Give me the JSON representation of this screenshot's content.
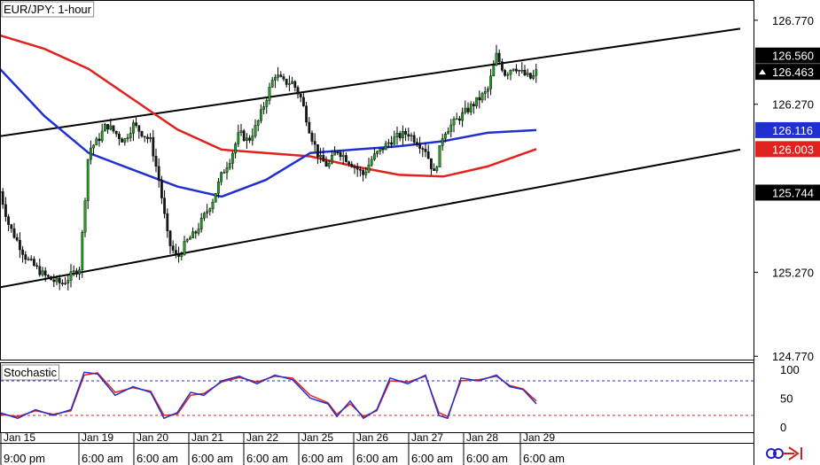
{
  "title": "EUR/JPY: 1-hour",
  "indicator_title": "Stochastic",
  "colors": {
    "background": "#ffffff",
    "candle_up": "#1e9e1e",
    "candle_down": "#1a1a1a",
    "ma_fast": "#1f2fd0",
    "ma_slow": "#e0221f",
    "trendline": "#000000",
    "stoch_k": "#1f2fd0",
    "stoch_d": "#e0221f",
    "level_upper": "#1f2fd0",
    "level_lower": "#e0221f"
  },
  "price_axis": {
    "ticks": [
      "126.770",
      "126.270",
      "125.270",
      "124.770"
    ],
    "tick_values": [
      126.77,
      126.27,
      125.27,
      124.77
    ],
    "markers": [
      {
        "label": "126.560",
        "value": 126.56,
        "bg": "#000000",
        "fg": "#ffffff"
      },
      {
        "label": "126.463",
        "value": 126.463,
        "bg": "#000000",
        "fg": "#ffffff"
      },
      {
        "label": "126.116",
        "value": 126.116,
        "bg": "#1f2fd0",
        "fg": "#ffffff"
      },
      {
        "label": "126.003",
        "value": 126.003,
        "bg": "#e0221f",
        "fg": "#ffffff"
      },
      {
        "label": "125.744",
        "value": 125.744,
        "bg": "#000000",
        "fg": "#ffffff"
      }
    ]
  },
  "stoch_axis": {
    "ticks": [
      "100",
      "50",
      "0"
    ],
    "levels": [
      80,
      20
    ]
  },
  "time_axis": {
    "dates": [
      "Jan 15",
      "Jan 19",
      "Jan 20",
      "Jan 21",
      "Jan 22",
      "Jan 25",
      "Jan 26",
      "Jan 27",
      "Jan 28",
      "Jan 29"
    ],
    "times": [
      "9:00 pm",
      "6:00 am",
      "6:00 am",
      "6:00 am",
      "6:00 am",
      "6:00 am",
      "6:00 am",
      "6:00 am",
      "6:00 am",
      "6:00 am"
    ]
  },
  "chart_data": {
    "type": "candlestick",
    "title": "EUR/JPY: 1-hour",
    "ylim": [
      124.75,
      126.88
    ],
    "price_series": {
      "name": "EUR/JPY",
      "x_index": [
        0,
        10,
        20,
        30,
        40,
        50,
        60,
        70,
        80,
        90,
        100,
        110,
        120,
        130,
        140,
        150,
        160,
        170,
        180,
        190,
        200,
        210,
        220,
        230,
        240,
        250,
        260,
        270,
        280,
        290,
        300,
        310,
        320,
        330,
        340,
        350,
        360,
        370,
        380,
        390,
        400,
        410,
        420,
        430,
        440,
        450,
        460,
        470,
        480,
        490,
        500,
        510,
        520,
        530,
        540,
        550,
        560,
        570,
        580,
        590,
        600,
        605
      ],
      "close": [
        125.75,
        125.55,
        125.45,
        125.35,
        125.3,
        125.25,
        125.22,
        125.2,
        125.25,
        125.3,
        126.0,
        126.05,
        126.15,
        126.1,
        126.05,
        126.15,
        126.1,
        126.05,
        125.8,
        125.45,
        125.35,
        125.45,
        125.5,
        125.6,
        125.7,
        125.85,
        125.95,
        126.1,
        126.05,
        126.15,
        126.3,
        126.45,
        126.4,
        126.4,
        126.3,
        126.1,
        125.95,
        125.9,
        126.0,
        125.95,
        125.9,
        125.85,
        125.95,
        126.0,
        126.05,
        126.08,
        126.1,
        126.05,
        126.0,
        125.85,
        126.1,
        126.15,
        126.2,
        126.25,
        126.3,
        126.35,
        126.56,
        126.45,
        126.5,
        126.45,
        126.42,
        126.463
      ]
    },
    "ma_fast": {
      "x_index": [
        0,
        50,
        100,
        150,
        200,
        250,
        300,
        350,
        400,
        450,
        500,
        550,
        605
      ],
      "values": [
        126.48,
        126.2,
        125.98,
        125.88,
        125.78,
        125.72,
        125.82,
        125.98,
        126.0,
        126.02,
        126.05,
        126.1,
        126.116
      ]
    },
    "ma_slow": {
      "x_index": [
        0,
        50,
        100,
        150,
        200,
        250,
        300,
        350,
        400,
        450,
        500,
        550,
        605
      ],
      "values": [
        126.68,
        126.6,
        126.48,
        126.3,
        126.12,
        126.0,
        125.98,
        125.96,
        125.9,
        125.85,
        125.84,
        125.9,
        126.003
      ]
    },
    "trendlines": [
      {
        "x_index": [
          0,
          835
        ],
        "values": [
          126.08,
          126.72
        ]
      },
      {
        "x_index": [
          0,
          835
        ],
        "values": [
          125.18,
          126.0
        ]
      }
    ],
    "stochastic": {
      "ylim": [
        0,
        100
      ],
      "levels": [
        80,
        20
      ],
      "x_index": [
        0,
        20,
        40,
        60,
        80,
        95,
        110,
        130,
        150,
        170,
        185,
        200,
        215,
        230,
        250,
        270,
        290,
        310,
        330,
        350,
        370,
        380,
        395,
        410,
        425,
        440,
        460,
        480,
        495,
        505,
        520,
        540,
        560,
        575,
        590,
        605
      ],
      "k": [
        25,
        15,
        30,
        20,
        30,
        95,
        92,
        55,
        70,
        60,
        15,
        25,
        60,
        55,
        80,
        88,
        75,
        90,
        82,
        50,
        40,
        18,
        45,
        15,
        30,
        85,
        75,
        90,
        20,
        15,
        85,
        80,
        90,
        70,
        65,
        40
      ],
      "d": [
        22,
        18,
        28,
        22,
        28,
        90,
        94,
        60,
        68,
        62,
        20,
        22,
        55,
        58,
        78,
        86,
        78,
        88,
        85,
        55,
        42,
        22,
        40,
        18,
        28,
        80,
        78,
        88,
        25,
        18,
        80,
        82,
        88,
        72,
        66,
        45
      ]
    }
  }
}
